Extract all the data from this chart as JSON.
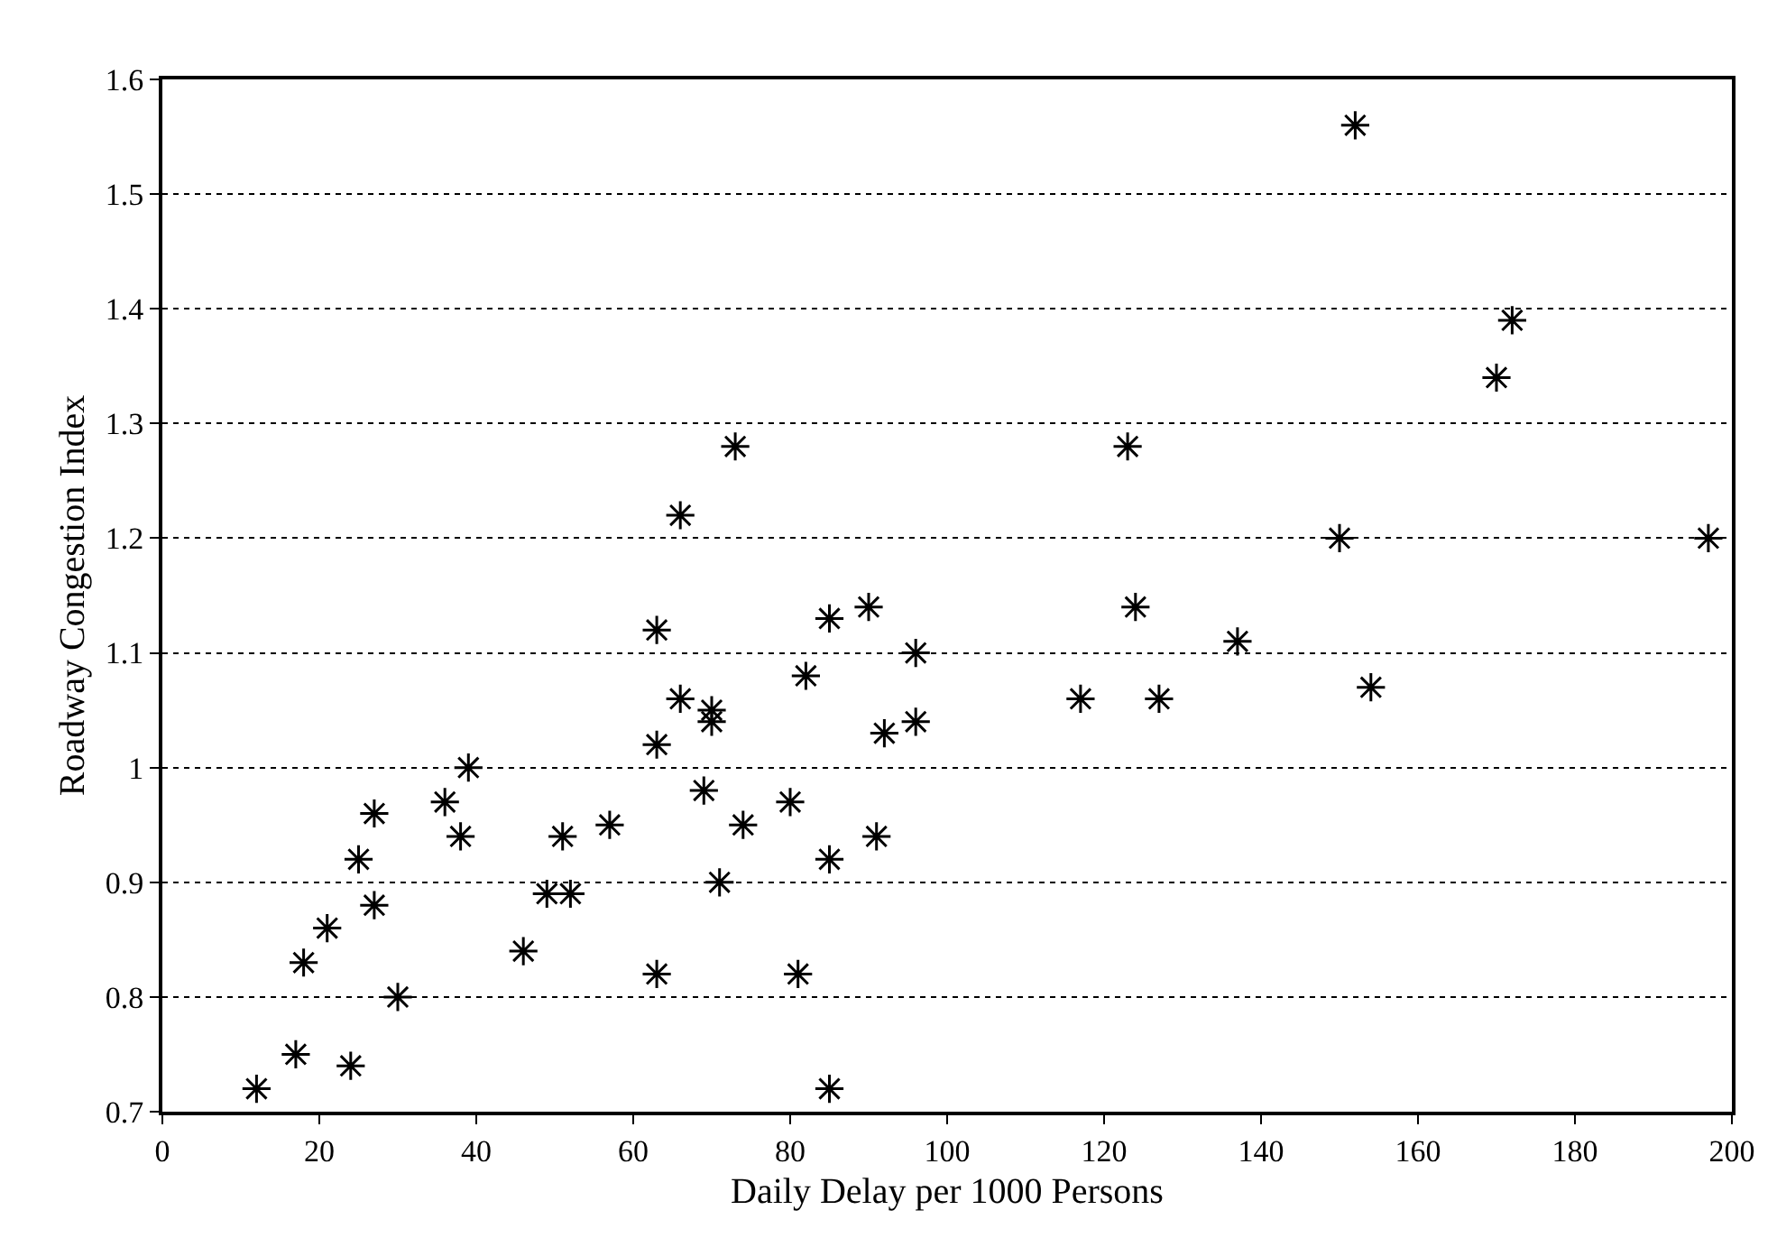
{
  "chart_data": {
    "type": "scatter",
    "xlabel": "Daily Delay per 1000 Persons",
    "ylabel": "Roadway Congestion Index",
    "x": [
      12,
      17,
      18,
      21,
      24,
      25,
      27,
      27,
      30,
      36,
      38,
      39,
      46,
      49,
      51,
      52,
      57,
      63,
      63,
      63,
      66,
      66,
      69,
      70,
      70,
      71,
      73,
      74,
      80,
      81,
      82,
      85,
      85,
      85,
      90,
      91,
      92,
      96,
      96,
      117,
      123,
      124,
      127,
      137,
      150,
      152,
      154,
      170,
      172,
      197
    ],
    "series": [
      {
        "color": "#000000",
        "values": [
          0.72,
          0.75,
          0.83,
          0.86,
          0.74,
          0.92,
          0.96,
          0.88,
          0.8,
          0.97,
          0.94,
          1.0,
          0.84,
          0.89,
          0.94,
          0.89,
          0.95,
          1.12,
          1.02,
          0.82,
          1.22,
          1.06,
          0.98,
          1.05,
          1.04,
          0.9,
          1.28,
          0.95,
          0.97,
          0.82,
          1.08,
          1.13,
          0.92,
          0.72,
          1.14,
          0.94,
          1.03,
          1.1,
          1.04,
          1.06,
          1.28,
          1.14,
          1.06,
          1.11,
          1.2,
          1.56,
          1.07,
          1.34,
          1.39,
          1.2
        ]
      }
    ],
    "xlim": [
      0,
      200
    ],
    "xticks": [
      0,
      20,
      40,
      60,
      80,
      100,
      120,
      140,
      160,
      180,
      200
    ],
    "ylim": [
      0.7,
      1.6
    ],
    "yticks": [
      0.7,
      0.8,
      0.9,
      1,
      1.1,
      1.2,
      1.3,
      1.4,
      1.5,
      1.6
    ],
    "grid": "y",
    "legend": false,
    "marker": "cross"
  }
}
